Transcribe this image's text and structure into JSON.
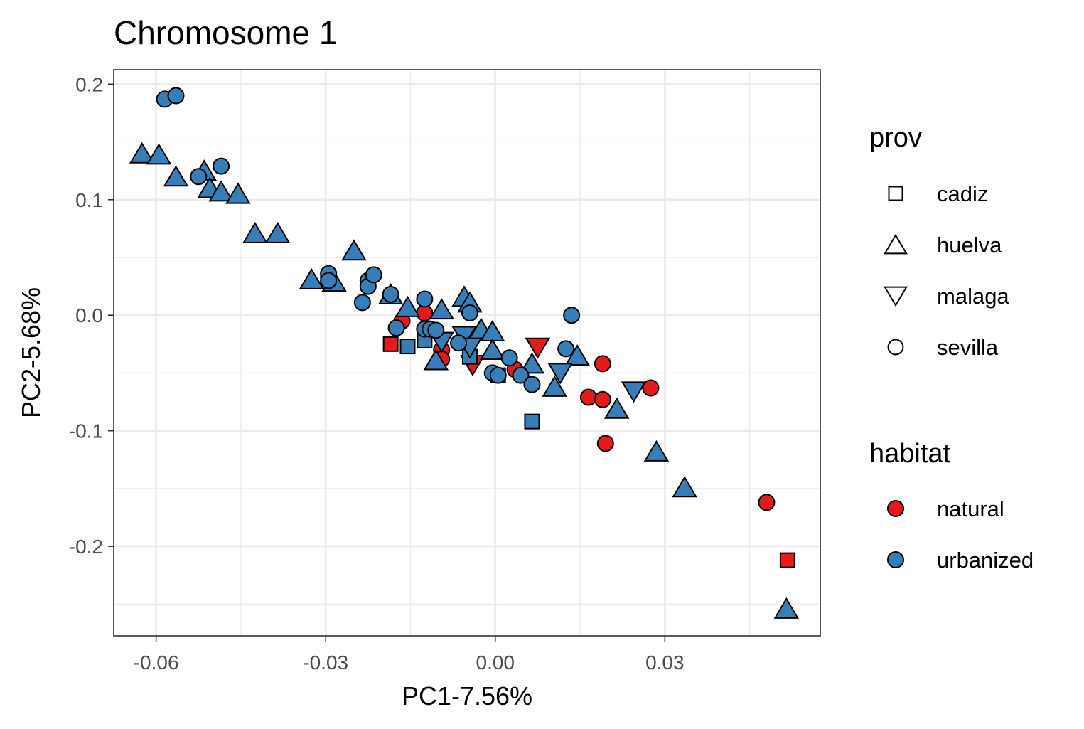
{
  "chart_data": {
    "type": "scatter",
    "title": "Chromosome 1",
    "xlabel": "PC1-7.56%",
    "ylabel": "PC2-5.68%",
    "xlim": [
      -0.0675,
      0.0575
    ],
    "ylim": [
      -0.2775,
      0.2125
    ],
    "x_ticks": [
      -0.06,
      -0.03,
      0.0,
      0.03
    ],
    "x_tick_labels": [
      "-0.06",
      "-0.03",
      "0.00",
      "0.03"
    ],
    "y_ticks": [
      0.2,
      0.1,
      0.0,
      -0.1,
      -0.2
    ],
    "y_tick_labels": [
      "0.2",
      "0.1",
      "0.0",
      "-0.1",
      "-0.2"
    ],
    "grid": true,
    "legend_position": "right",
    "legends": {
      "prov": {
        "title": "prov",
        "entries": [
          {
            "key": "cadiz",
            "label": "cadiz",
            "shape": "square"
          },
          {
            "key": "huelva",
            "label": "huelva",
            "shape": "triangle-up"
          },
          {
            "key": "malaga",
            "label": "malaga",
            "shape": "triangle-down"
          },
          {
            "key": "sevilla",
            "label": "sevilla",
            "shape": "circle"
          }
        ]
      },
      "habitat": {
        "title": "habitat",
        "entries": [
          {
            "key": "natural",
            "label": "natural",
            "color": "#e41a1c"
          },
          {
            "key": "urbanized",
            "label": "urbanized",
            "color": "#377eb8"
          }
        ]
      }
    },
    "series": [
      {
        "habitat": "natural",
        "prov": "cadiz",
        "x": [
          -0.0185,
          0.0517
        ],
        "y": [
          -0.025,
          -0.212
        ]
      },
      {
        "habitat": "natural",
        "prov": "malaga",
        "x": [
          -0.004,
          0.0075
        ],
        "y": [
          -0.043,
          -0.028
        ]
      },
      {
        "habitat": "natural",
        "prov": "sevilla",
        "x": [
          -0.0295,
          -0.0165,
          -0.0125,
          -0.0115,
          -0.0095,
          -0.0095,
          -0.0045,
          0.0035,
          0.0165,
          0.019,
          0.019,
          0.0195,
          0.0275,
          0.048
        ],
        "y": [
          0.033,
          -0.005,
          0.002,
          -0.012,
          -0.03,
          -0.038,
          -0.021,
          -0.047,
          -0.071,
          -0.073,
          -0.042,
          -0.111,
          -0.063,
          -0.162
        ]
      },
      {
        "habitat": "urbanized",
        "prov": "cadiz",
        "x": [
          -0.0155,
          -0.0125,
          -0.0045,
          0.0005,
          0.0065
        ],
        "y": [
          -0.027,
          -0.022,
          -0.036,
          -0.052,
          -0.092
        ]
      },
      {
        "habitat": "urbanized",
        "prov": "huelva",
        "x": [
          -0.0625,
          -0.0595,
          -0.0565,
          -0.0515,
          -0.0505,
          -0.0485,
          -0.0455,
          -0.0425,
          -0.0385,
          -0.0325,
          -0.0285,
          -0.025,
          -0.0185,
          -0.0155,
          -0.0105,
          -0.0095,
          -0.0055,
          -0.0045,
          -0.0025,
          -0.0005,
          -0.0005,
          0.0065,
          0.0105,
          0.0145,
          0.0215,
          0.0285,
          0.0335,
          0.0515
        ],
        "y": [
          0.14,
          0.139,
          0.12,
          0.125,
          0.11,
          0.107,
          0.105,
          0.071,
          0.071,
          0.031,
          0.029,
          0.056,
          0.018,
          0.007,
          -0.039,
          0.005,
          0.016,
          0.011,
          -0.012,
          -0.014,
          -0.03,
          -0.042,
          -0.062,
          -0.035,
          -0.081,
          -0.118,
          -0.149,
          -0.254
        ]
      },
      {
        "habitat": "urbanized",
        "prov": "malaga",
        "x": [
          -0.0095,
          -0.0055,
          -0.0045,
          0.0115,
          0.0245
        ],
        "y": [
          -0.023,
          -0.018,
          -0.028,
          -0.05,
          -0.066
        ]
      },
      {
        "habitat": "urbanized",
        "prov": "sevilla",
        "x": [
          -0.0585,
          -0.0565,
          -0.0525,
          -0.0485,
          -0.0295,
          -0.0295,
          -0.0235,
          -0.0225,
          -0.0225,
          -0.0215,
          -0.0185,
          -0.0175,
          -0.0125,
          -0.0125,
          -0.0115,
          -0.0105,
          -0.0065,
          -0.0045,
          -0.0005,
          0.0005,
          0.0025,
          0.0045,
          0.0065,
          0.0125,
          0.0135
        ],
        "y": [
          0.187,
          0.19,
          0.12,
          0.129,
          0.036,
          0.03,
          0.011,
          0.03,
          0.025,
          0.035,
          0.018,
          -0.011,
          -0.012,
          0.014,
          -0.012,
          -0.013,
          -0.024,
          0.002,
          -0.05,
          -0.052,
          -0.037,
          -0.052,
          -0.06,
          -0.029,
          0.0
        ]
      }
    ]
  }
}
